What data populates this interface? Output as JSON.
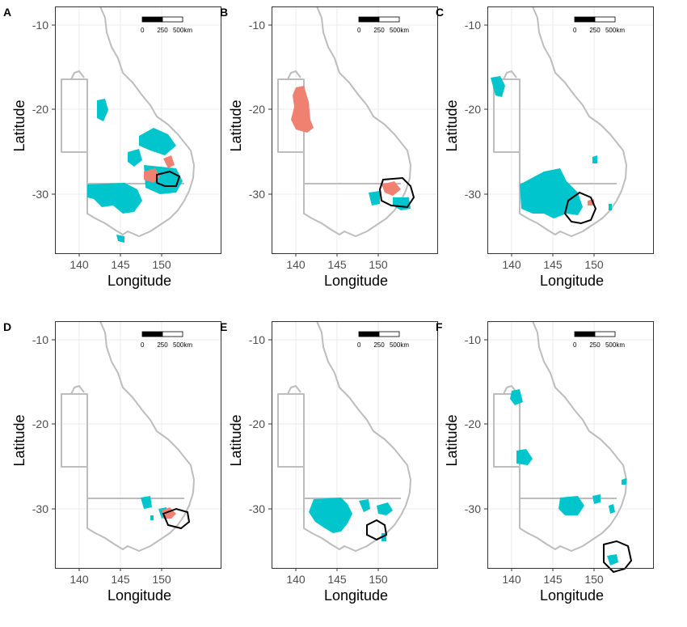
{
  "figure": {
    "axis_labels": {
      "x": "Longitude",
      "y": "Latitude"
    },
    "x_ticks": [
      "140",
      "145",
      "150"
    ],
    "y_ticks": [
      "-10",
      "-20",
      "-30"
    ],
    "scale_bar": {
      "labels": [
        "0",
        "250",
        "500km"
      ]
    },
    "colors": {
      "cyan_regions": "#00c5cd",
      "salmon_regions": "#f08070",
      "outline": "#000000",
      "coastline": "#bdbdbd"
    },
    "panels": [
      {
        "letter": "A"
      },
      {
        "letter": "B"
      },
      {
        "letter": "C"
      },
      {
        "letter": "D"
      },
      {
        "letter": "E"
      },
      {
        "letter": "F"
      }
    ]
  }
}
